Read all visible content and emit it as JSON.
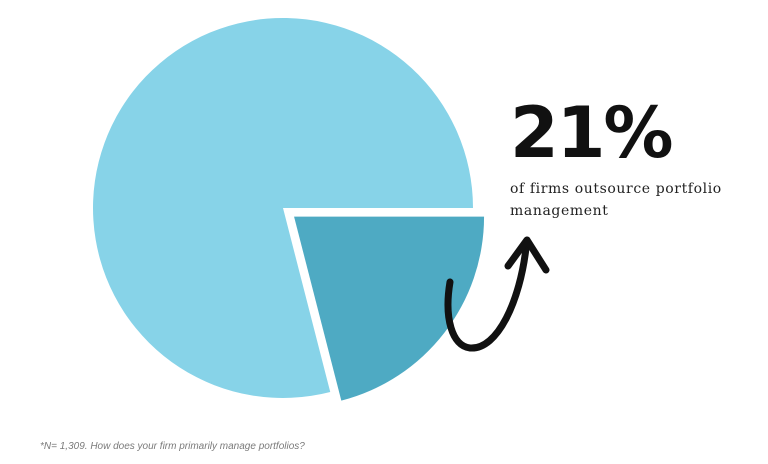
{
  "chart_data": {
    "type": "pie",
    "slices": [
      {
        "label": "",
        "value": 79,
        "color": "#87d3e8",
        "exploded": false
      },
      {
        "label": "",
        "value": 21,
        "color": "#4eaac3",
        "exploded": true
      }
    ],
    "highlight": {
      "value_text": "21%",
      "caption": "of firms outsource portfolio management"
    },
    "footnote": "*N= 1,309. How does your firm primarily manage portfolios?"
  },
  "colors": {
    "main_slice": "#87d3e8",
    "accent_slice": "#4eaac3",
    "arrow": "#111111"
  },
  "icons": {
    "arrow": "curved-arrow-icon"
  }
}
